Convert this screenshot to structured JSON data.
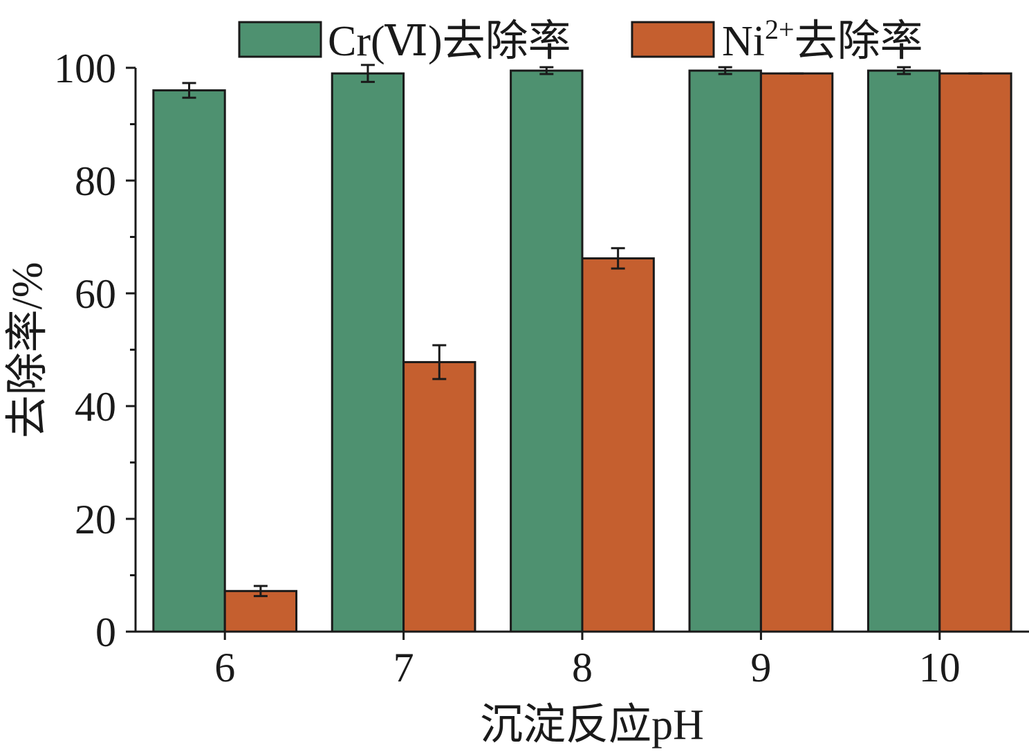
{
  "chart_data": {
    "type": "bar",
    "title": "",
    "xlabel": "沉淀反应pH",
    "ylabel": "去除率/%",
    "categories": [
      "6",
      "7",
      "8",
      "9",
      "10"
    ],
    "ylim": [
      0,
      100
    ],
    "yticks": [
      0,
      20,
      40,
      60,
      80,
      100
    ],
    "grid": false,
    "legend_position": "top",
    "series": [
      {
        "name": "Cr(Ⅵ)去除率",
        "legend_parts": {
          "text": "Cr(Ⅵ)去除率"
        },
        "color": "#4e9170",
        "values": [
          96.0,
          99.0,
          99.5,
          99.5,
          99.5
        ],
        "errors": [
          1.3,
          1.5,
          0.6,
          0.6,
          0.6
        ]
      },
      {
        "name": "Ni2+去除率",
        "legend_parts": {
          "base": "Ni",
          "sup": "2+",
          "rest": "去除率"
        },
        "color": "#c55f2f",
        "values": [
          7.2,
          47.8,
          66.2,
          99.0,
          99.0
        ],
        "errors": [
          0.9,
          3.0,
          1.8,
          0.0,
          0.0
        ]
      }
    ]
  }
}
